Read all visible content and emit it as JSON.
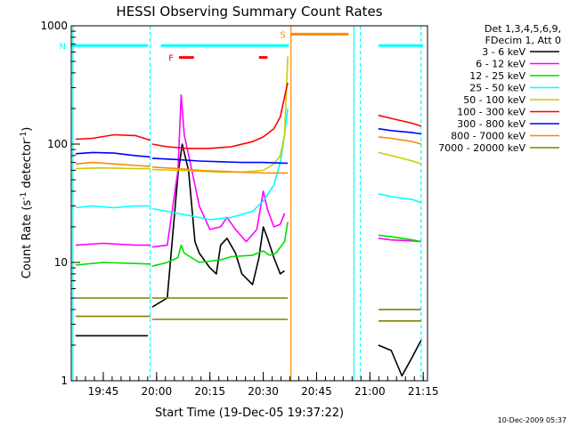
{
  "chart_data": {
    "type": "line",
    "title": "HESSI Observing Summary Count Rates",
    "xlabel": "Start Time (19-Dec-05 19:37:22)",
    "ylabel": "Count Rate (s⁻¹ detector⁻¹)",
    "ylabel_parts": {
      "main": "Count Rate (s",
      "sup1": "-1",
      "mid": " detector",
      "sup2": "-1",
      "end": ")"
    },
    "y_scale": "log",
    "ylim": [
      1,
      1000
    ],
    "xlim": [
      19.6,
      21.27
    ],
    "x_unit": "hours (UT)",
    "x_ticks": [
      {
        "value": 19.75,
        "label": "19:45"
      },
      {
        "value": 20.0,
        "label": "20:00"
      },
      {
        "value": 20.25,
        "label": "20:15"
      },
      {
        "value": 20.5,
        "label": "20:30"
      },
      {
        "value": 20.75,
        "label": "20:45"
      },
      {
        "value": 21.0,
        "label": "21:00"
      },
      {
        "value": 21.25,
        "label": "21:15"
      }
    ],
    "y_ticks": [
      {
        "value": 1,
        "label": "1"
      },
      {
        "value": 10,
        "label": "10"
      },
      {
        "value": 100,
        "label": "100"
      },
      {
        "value": 1000,
        "label": "1000"
      }
    ],
    "legend_header": [
      "Det 1,3,4,5,6,9,",
      "FDecim 1, Att 0"
    ],
    "legend_position": "right",
    "series": [
      {
        "name": "3 - 6 keV",
        "color": "#000000",
        "segments": [
          {
            "x": [
              19.62,
              19.75,
              19.9,
              19.96
            ],
            "y": [
              2.4,
              2.4,
              2.4,
              2.4
            ]
          },
          {
            "x": [
              19.98,
              20.05,
              20.1,
              20.12,
              20.15,
              20.18,
              20.2,
              20.25,
              20.28,
              20.3,
              20.33,
              20.37,
              20.4,
              20.45,
              20.48,
              20.5,
              20.52,
              20.55,
              20.58,
              20.6
            ],
            "y": [
              4.2,
              5,
              55,
              100,
              60,
              15,
              12,
              9,
              8,
              14,
              16,
              12,
              8,
              6.5,
              11,
              20,
              16,
              11,
              8,
              8.5
            ]
          },
          {
            "x": [
              21.04,
              21.1,
              21.15,
              21.2,
              21.24
            ],
            "y": [
              2,
              1.8,
              1.1,
              1.6,
              2.2
            ]
          }
        ]
      },
      {
        "name": "6 - 12 keV",
        "color": "#ff00ff",
        "segments": [
          {
            "x": [
              19.62,
              19.75,
              19.9,
              19.97
            ],
            "y": [
              14,
              14.5,
              14,
              14
            ]
          },
          {
            "x": [
              19.98,
              20.05,
              20.1,
              20.115,
              20.13,
              20.18,
              20.2,
              20.25,
              20.3,
              20.33,
              20.37,
              20.42,
              20.47,
              20.5,
              20.52,
              20.55,
              20.58,
              20.6
            ],
            "y": [
              13.5,
              14,
              60,
              260,
              120,
              45,
              30,
              19,
              20,
              24,
              19,
              15,
              19,
              40,
              28,
              20,
              21,
              26
            ]
          },
          {
            "x": [
              21.04,
              21.1,
              21.2,
              21.24
            ],
            "y": [
              16,
              15.5,
              15.2,
              15
            ]
          }
        ]
      },
      {
        "name": "12 - 25 keV",
        "color": "#00dd00",
        "segments": [
          {
            "x": [
              19.62,
              19.75,
              19.9,
              19.97
            ],
            "y": [
              9.5,
              10,
              9.8,
              9.7
            ]
          },
          {
            "x": [
              19.98,
              20.05,
              20.1,
              20.115,
              20.13,
              20.2,
              20.3,
              20.35,
              20.45,
              20.5,
              20.53,
              20.56,
              20.6,
              20.615
            ],
            "y": [
              9.3,
              10,
              11,
              14,
              12,
              10,
              10.5,
              11.2,
              11.5,
              12.5,
              11.5,
              12,
              15,
              22
            ]
          },
          {
            "x": [
              21.04,
              21.1,
              21.2,
              21.24
            ],
            "y": [
              17,
              16.5,
              15.5,
              15
            ]
          }
        ]
      },
      {
        "name": "25 - 50 keV",
        "color": "#00ffff",
        "segments": [
          {
            "x": [
              19.62,
              19.7,
              19.8,
              19.9,
              19.97
            ],
            "y": [
              29,
              30,
              29,
              30,
              30
            ]
          },
          {
            "x": [
              19.98,
              20.05,
              20.15,
              20.25,
              20.35,
              20.45,
              20.5,
              20.55,
              20.58,
              20.6,
              20.615
            ],
            "y": [
              28.5,
              27,
              25,
              23,
              24,
              27,
              33,
              45,
              70,
              120,
              200
            ]
          },
          {
            "x": [
              21.04,
              21.1,
              21.2,
              21.24
            ],
            "y": [
              38,
              36,
              34,
              32
            ]
          }
        ]
      },
      {
        "name": "50 - 100 keV",
        "color": "#cccc00",
        "segments": [
          {
            "x": [
              19.62,
              19.75,
              19.9,
              19.97
            ],
            "y": [
              62,
              63,
              62,
              62
            ]
          },
          {
            "x": [
              19.98,
              20.1,
              20.2,
              20.3,
              20.4,
              20.5,
              20.55,
              20.58,
              20.6,
              20.615
            ],
            "y": [
              61,
              60,
              59,
              58,
              58,
              60,
              68,
              80,
              120,
              550
            ]
          },
          {
            "x": [
              21.04,
              21.1,
              21.2,
              21.24
            ],
            "y": [
              85,
              80,
              72,
              68
            ]
          }
        ]
      },
      {
        "name": "100 - 300 keV",
        "color": "#ff0000",
        "segments": [
          {
            "x": [
              19.62,
              19.7,
              19.8,
              19.9,
              19.97
            ],
            "y": [
              110,
              112,
              120,
              118,
              108
            ]
          },
          {
            "x": [
              19.98,
              20.05,
              20.15,
              20.25,
              20.35,
              20.45,
              20.5,
              20.55,
              20.58,
              20.6,
              20.615
            ],
            "y": [
              100,
              95,
              92,
              92,
              95,
              105,
              115,
              135,
              170,
              250,
              330
            ]
          },
          {
            "x": [
              21.04,
              21.1,
              21.2,
              21.24
            ],
            "y": [
              175,
              165,
              150,
              142
            ]
          }
        ]
      },
      {
        "name": "300 - 800 keV",
        "color": "#0000ff",
        "segments": [
          {
            "x": [
              19.62,
              19.7,
              19.8,
              19.9,
              19.97
            ],
            "y": [
              83,
              85,
              84,
              80,
              78
            ]
          },
          {
            "x": [
              19.98,
              20.1,
              20.2,
              20.3,
              20.4,
              20.5,
              20.6,
              20.615
            ],
            "y": [
              76,
              74,
              72,
              71,
              70,
              70,
              69,
              69
            ]
          },
          {
            "x": [
              21.04,
              21.1,
              21.2,
              21.24
            ],
            "y": [
              135,
              130,
              125,
              122
            ]
          }
        ]
      },
      {
        "name": "800 - 7000 keV",
        "color": "#ff8800",
        "segments": [
          {
            "x": [
              19.62,
              19.7,
              19.8,
              19.9,
              19.97
            ],
            "y": [
              68,
              70,
              68,
              66,
              65
            ]
          },
          {
            "x": [
              19.98,
              20.1,
              20.2,
              20.3,
              20.4,
              20.5,
              20.6,
              20.615
            ],
            "y": [
              64,
              62,
              60,
              59,
              58,
              57,
              57,
              57
            ]
          },
          {
            "x": [
              21.04,
              21.1,
              21.2,
              21.24
            ],
            "y": [
              115,
              112,
              105,
              100
            ]
          }
        ]
      },
      {
        "name": "7000 - 20000 keV",
        "color": "#808000",
        "segments": [
          {
            "x": [
              19.62,
              19.7,
              19.8,
              19.9,
              19.97
            ],
            "y": [
              5,
              5,
              5,
              5,
              5
            ]
          },
          {
            "x": [
              19.98,
              20.1,
              20.2,
              20.3,
              20.4,
              20.5,
              20.6,
              20.615
            ],
            "y": [
              5,
              5,
              5,
              5,
              5,
              5,
              5,
              5
            ]
          },
          {
            "x": [
              21.04,
              21.1,
              21.2,
              21.24
            ],
            "y": [
              4,
              4,
              4,
              4
            ]
          },
          {
            "x": [
              19.62,
              19.75,
              19.9,
              19.97
            ],
            "y": [
              3.5,
              3.5,
              3.5,
              3.5
            ]
          },
          {
            "x": [
              19.98,
              20.1,
              20.2,
              20.3,
              20.4,
              20.5,
              20.615
            ],
            "y": [
              3.3,
              3.3,
              3.3,
              3.3,
              3.3,
              3.3,
              3.3
            ]
          },
          {
            "x": [
              21.04,
              21.1,
              21.24
            ],
            "y": [
              3.2,
              3.2,
              3.2
            ]
          }
        ]
      }
    ],
    "flag_bars": [
      {
        "label": "N",
        "color": "#00ffff",
        "y": 680,
        "ranges": [
          [
            19.6,
            19.96
          ],
          [
            20.02,
            20.62
          ],
          [
            21.04,
            21.25
          ]
        ]
      },
      {
        "label": "F",
        "color": "#ff0000",
        "y": 540,
        "ranges": [
          [
            20.105,
            20.175
          ],
          [
            20.48,
            20.52
          ]
        ]
      },
      {
        "label": "S",
        "color": "#ff8800",
        "y": 850,
        "ranges": [
          [
            20.63,
            20.9
          ]
        ]
      }
    ],
    "vlines": [
      {
        "x": 19.608,
        "color": "#00ffff",
        "style": "solid"
      },
      {
        "x": 19.97,
        "color": "#00ffff",
        "style": "dashed"
      },
      {
        "x": 20.63,
        "color": "#ff8800",
        "style": "solid"
      },
      {
        "x": 20.925,
        "color": "#00ffff",
        "style": "solid"
      },
      {
        "x": 20.955,
        "color": "#00ffff",
        "style": "dashed"
      },
      {
        "x": 21.24,
        "color": "#00ffff",
        "style": "dashed"
      }
    ],
    "footer": "10-Dec-2009 05:37"
  }
}
